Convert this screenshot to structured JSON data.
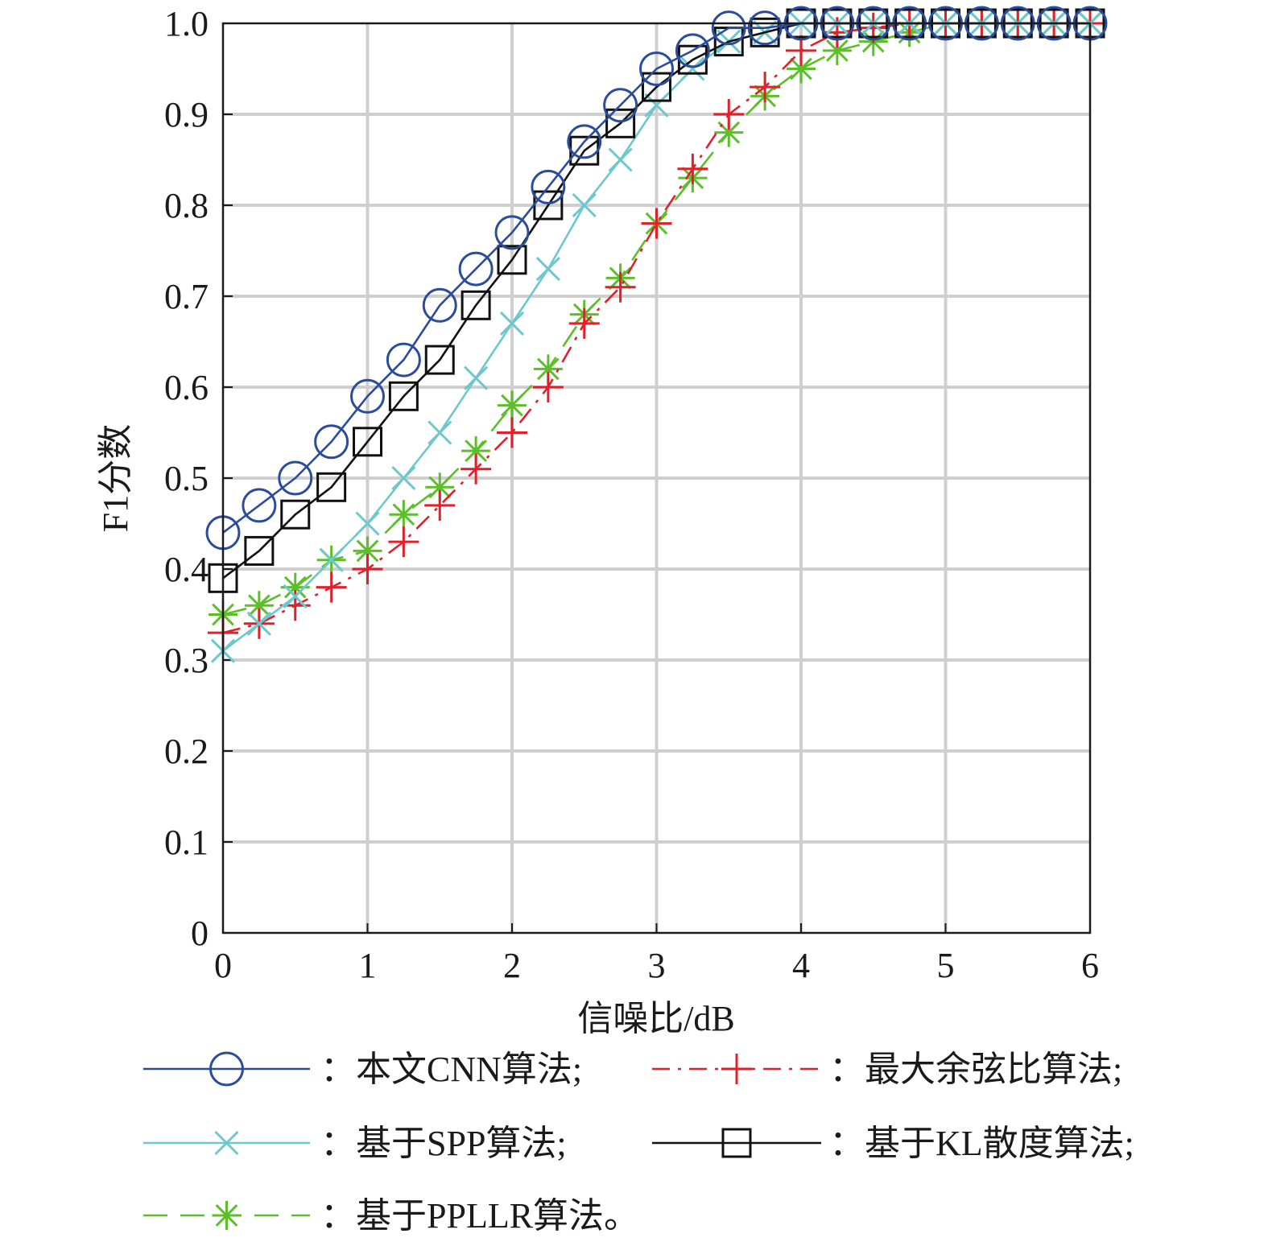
{
  "chart_data": {
    "type": "line",
    "xlabel": "信噪比/dB",
    "ylabel": "F1分数",
    "xlim": [
      0,
      6
    ],
    "ylim": [
      0,
      1.0
    ],
    "xticks": [
      "0",
      "1",
      "2",
      "3",
      "4",
      "5",
      "6"
    ],
    "yticks": [
      "0",
      "0.1",
      "0.2",
      "0.3",
      "0.4",
      "0.5",
      "0.6",
      "0.7",
      "0.8",
      "0.9",
      "1.0"
    ],
    "grid": true,
    "legend_position": "bottom",
    "x": [
      0,
      0.25,
      0.5,
      0.75,
      1,
      1.25,
      1.5,
      1.75,
      2,
      2.25,
      2.5,
      2.75,
      3,
      3.25,
      3.5,
      3.75,
      4,
      4.25,
      4.5,
      4.75,
      5,
      5.25,
      5.5,
      5.75,
      6
    ],
    "series": [
      {
        "name": "：本文CNN算法;",
        "color": "#2b4c9b",
        "marker": "circle",
        "line": "solid",
        "values": [
          0.44,
          0.47,
          0.5,
          0.54,
          0.59,
          0.63,
          0.69,
          0.73,
          0.77,
          0.82,
          0.87,
          0.91,
          0.95,
          0.97,
          0.995,
          0.995,
          1.0,
          1.0,
          1.0,
          1.0,
          1.0,
          1.0,
          1.0,
          1.0,
          1.0
        ]
      },
      {
        "name": "：最大余弦比算法;",
        "color": "#e0202a",
        "marker": "plus",
        "line": "dashdot",
        "values": [
          0.33,
          0.34,
          0.36,
          0.38,
          0.4,
          0.43,
          0.47,
          0.51,
          0.55,
          0.6,
          0.67,
          0.71,
          0.78,
          0.84,
          0.9,
          0.93,
          0.97,
          0.99,
          0.995,
          1.0,
          1.0,
          1.0,
          1.0,
          1.0,
          1.0
        ]
      },
      {
        "name": "：基于SPP算法;",
        "color": "#6cc8cc",
        "marker": "x",
        "line": "solid",
        "values": [
          0.31,
          0.34,
          0.37,
          0.41,
          0.45,
          0.5,
          0.55,
          0.61,
          0.67,
          0.73,
          0.8,
          0.85,
          0.91,
          0.95,
          0.98,
          0.99,
          1.0,
          1.0,
          1.0,
          1.0,
          1.0,
          1.0,
          1.0,
          1.0,
          1.0
        ]
      },
      {
        "name": "：基于KL散度算法;",
        "color": "#111111",
        "marker": "square",
        "line": "solid",
        "values": [
          0.39,
          0.42,
          0.46,
          0.49,
          0.54,
          0.59,
          0.63,
          0.69,
          0.74,
          0.8,
          0.86,
          0.89,
          0.93,
          0.96,
          0.98,
          0.99,
          1.0,
          1.0,
          1.0,
          1.0,
          1.0,
          1.0,
          1.0,
          1.0,
          1.0
        ]
      },
      {
        "name": "：基于PPLLR算法。",
        "color": "#5cbf2a",
        "marker": "asterisk",
        "line": "dashed",
        "values": [
          0.35,
          0.36,
          0.38,
          0.41,
          0.42,
          0.46,
          0.49,
          0.53,
          0.58,
          0.62,
          0.68,
          0.72,
          0.78,
          0.83,
          0.88,
          0.92,
          0.95,
          0.97,
          0.98,
          0.99,
          1.0,
          1.0,
          1.0,
          1.0,
          1.0
        ]
      }
    ]
  }
}
